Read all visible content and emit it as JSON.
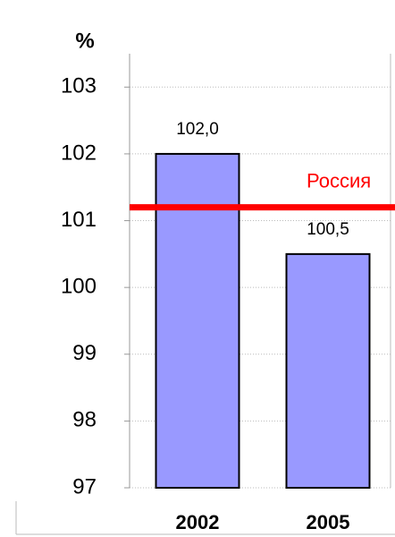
{
  "chart_data": {
    "type": "bar",
    "y_axis_label": "%",
    "categories": [
      "2002",
      "2005"
    ],
    "values": [
      102.0,
      100.5
    ],
    "value_labels": [
      "102,0",
      "100,5"
    ],
    "color": "#9999ff",
    "ylim": [
      97,
      103.5
    ],
    "yticks": [
      97,
      98,
      99,
      100,
      101,
      102,
      103
    ],
    "grid": true,
    "reference_line": {
      "label": "Россия",
      "value": 101.2,
      "color": "#ff0000"
    }
  }
}
